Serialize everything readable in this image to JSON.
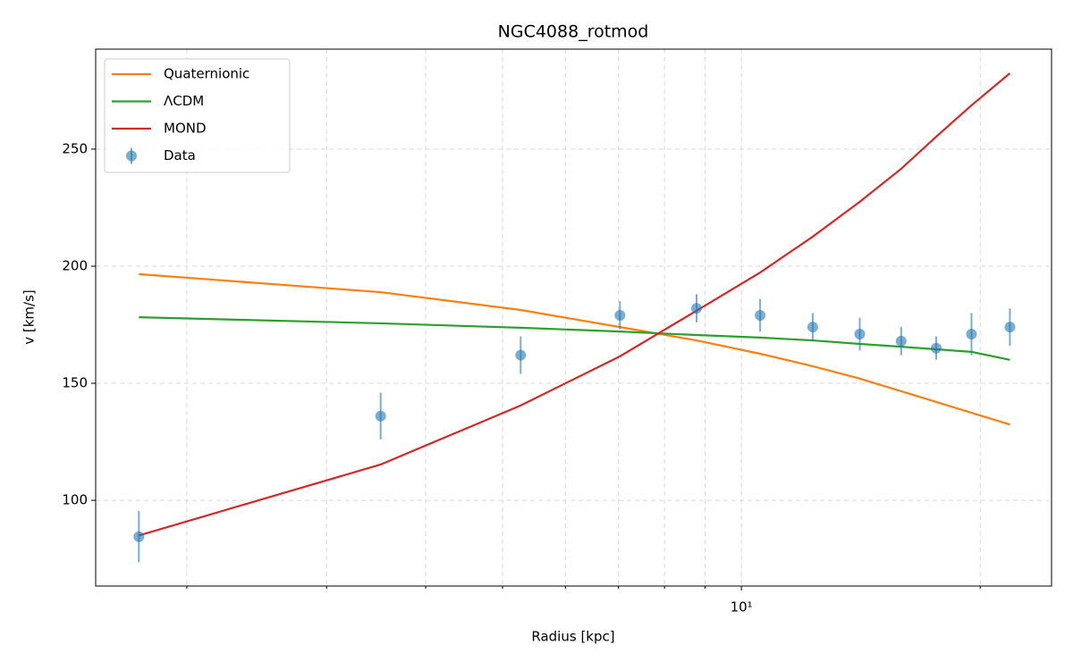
{
  "chart_data": {
    "type": "line",
    "title": "NGC4088_rotmod",
    "x_label": "Radius [kpc]",
    "y_label": "v [km/s]",
    "x": [
      1.74,
      3.51,
      5.27,
      7.03,
      8.78,
      10.56,
      12.3,
      14.1,
      15.9,
      17.6,
      19.5,
      21.8
    ],
    "xscale": "log",
    "xlim": [
      1.535,
      24.6
    ],
    "xticks": [
      {
        "value": 10,
        "label": "10¹"
      }
    ],
    "xminor_ticks": [
      2,
      3,
      4,
      5,
      6,
      7,
      8,
      9,
      20
    ],
    "ylim": [
      63.4,
      292.7
    ],
    "yticks": [
      100,
      150,
      200,
      250
    ],
    "grid": true,
    "legend": "upper left",
    "series": [
      {
        "name": "Quaternionic",
        "color": "#ff7f0e",
        "values": [
          196.6,
          188.9,
          181.3,
          174,
          168.3,
          162.6,
          157.3,
          152,
          146.6,
          142,
          137.4,
          132.4
        ]
      },
      {
        "name": "ΛCDM",
        "color": "#2ca02c",
        "values": [
          178.2,
          175.6,
          173.7,
          172.1,
          170.6,
          169.5,
          168.3,
          166.8,
          165.6,
          164.5,
          163.4,
          160
        ]
      },
      {
        "name": "MOND",
        "color": "#d62728",
        "values": [
          85,
          115.3,
          140.5,
          161.5,
          181,
          197.3,
          212.6,
          227.5,
          241.6,
          255.3,
          268.7,
          282.4
        ]
      },
      {
        "name": "Data",
        "color": "#1f77b4",
        "style": "errorbar",
        "values": [
          84.5,
          136,
          162,
          179,
          182,
          179,
          174,
          171,
          168,
          165,
          171,
          174
        ],
        "errors": [
          11,
          10,
          8,
          6,
          6,
          7,
          6,
          7,
          6,
          5,
          9,
          8
        ]
      }
    ]
  }
}
